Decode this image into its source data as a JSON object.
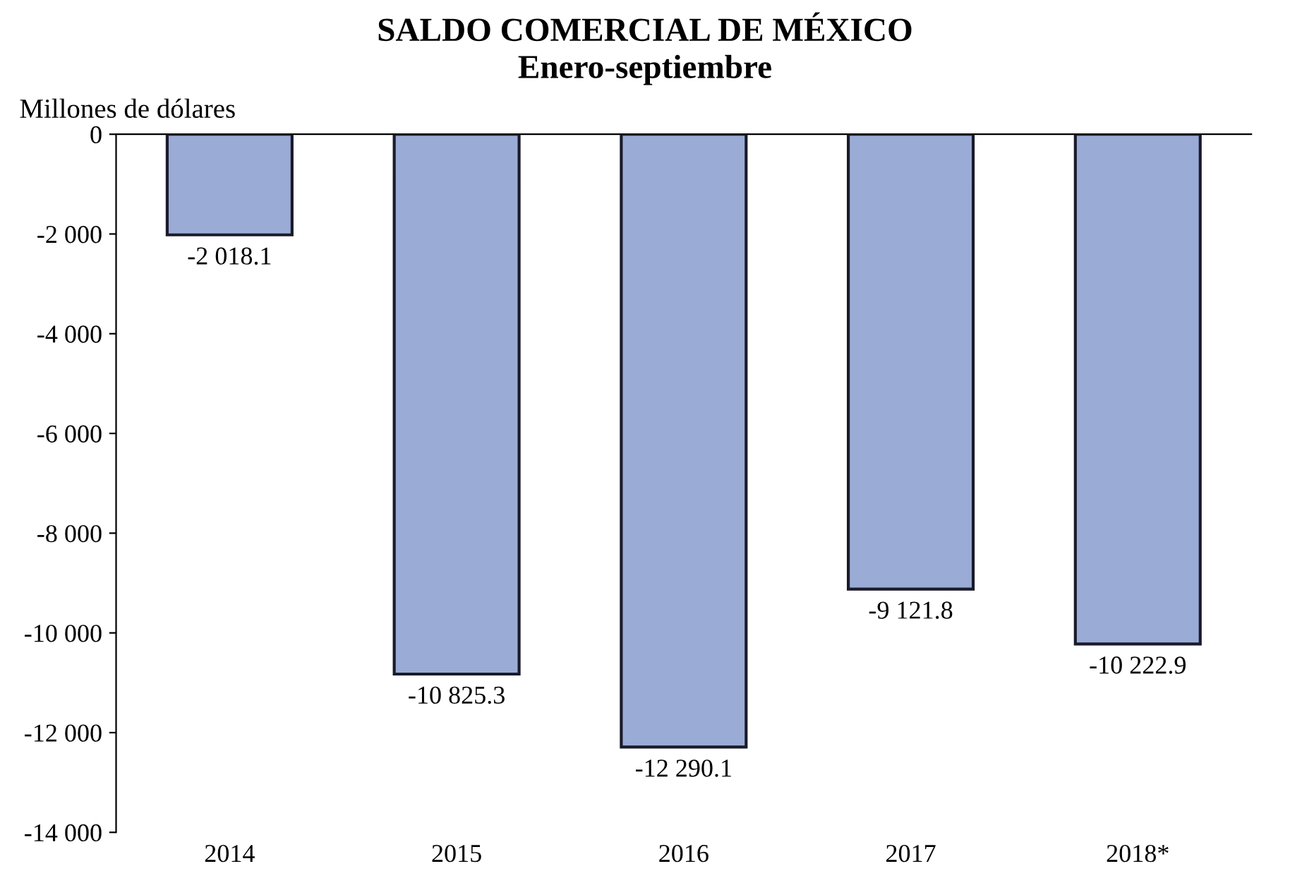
{
  "chart_data": {
    "type": "bar",
    "title": "SALDO COMERCIAL DE MÉXICO\nEnero-septiembre",
    "ylabel": "Millones de dólares",
    "categories": [
      "2014",
      "2015",
      "2016",
      "2017",
      "2018*"
    ],
    "values": [
      -2018.1,
      -10825.3,
      -12290.1,
      -9121.8,
      -10222.9
    ],
    "value_labels": [
      "-2 018.1",
      "-10 825.3",
      "-12 290.1",
      "-9 121.8",
      "-10 222.9"
    ],
    "color": "#9aabd6",
    "ylim": [
      -14000,
      0
    ],
    "yticks": [
      0,
      {
        "value": -2000,
        "label": "-2 000"
      },
      {
        "value": -4000,
        "label": "-4 000"
      },
      {
        "value": -6000,
        "label": "-6 000"
      },
      {
        "value": -8000,
        "label": "-8 000"
      },
      {
        "value": -10000,
        "label": "-10 000"
      },
      {
        "value": -12000,
        "label": "-12 000"
      },
      {
        "value": -14000,
        "label": "-14 000"
      }
    ],
    "grid": false,
    "legend": false
  }
}
